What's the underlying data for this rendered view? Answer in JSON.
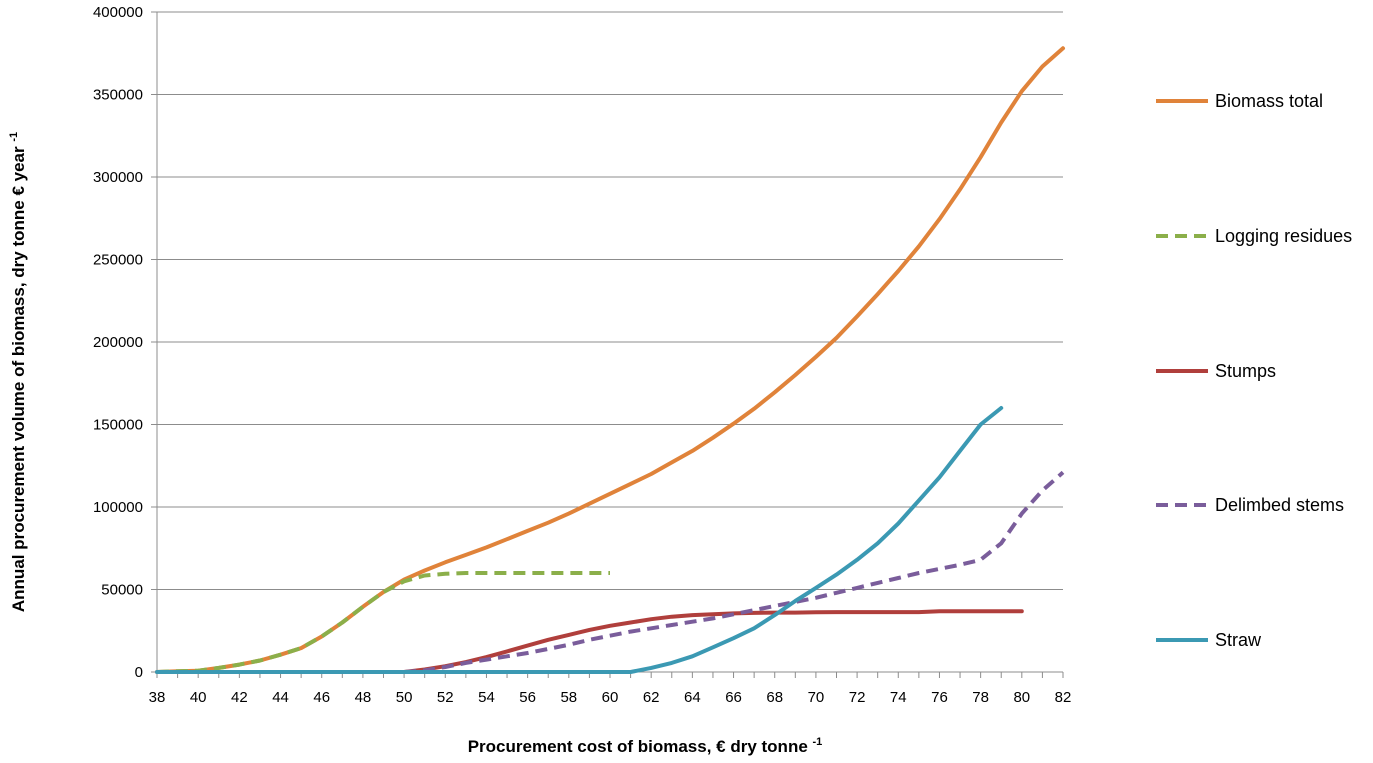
{
  "chart_data": {
    "type": "line",
    "xlabel": "Procurement cost of biomass, € dry tonne",
    "xlabel_sup": "-1",
    "ylabel": "Annual procurement volume of biomass, dry tonne € year",
    "ylabel_sup": "-1",
    "xlim": [
      38,
      82
    ],
    "ylim": [
      0,
      400000
    ],
    "x_ticks": [
      38,
      40,
      42,
      44,
      46,
      48,
      50,
      52,
      54,
      56,
      58,
      60,
      62,
      64,
      66,
      68,
      70,
      72,
      74,
      76,
      78,
      80,
      82
    ],
    "y_ticks": [
      0,
      50000,
      100000,
      150000,
      200000,
      250000,
      300000,
      350000,
      400000
    ],
    "grid": "horizontal",
    "legend_position": "right",
    "series": [
      {
        "name": "Biomass total",
        "color": "#E0833A",
        "dash": "solid",
        "points": [
          [
            38,
            0
          ],
          [
            39,
            500
          ],
          [
            40,
            800
          ],
          [
            41,
            2500
          ],
          [
            42,
            4500
          ],
          [
            43,
            7000
          ],
          [
            44,
            10500
          ],
          [
            45,
            14500
          ],
          [
            46,
            21500
          ],
          [
            47,
            30000
          ],
          [
            48,
            39500
          ],
          [
            49,
            48500
          ],
          [
            50,
            56000
          ],
          [
            51,
            61500
          ],
          [
            52,
            66500
          ],
          [
            53,
            71000
          ],
          [
            54,
            75500
          ],
          [
            55,
            80500
          ],
          [
            56,
            85500
          ],
          [
            57,
            90500
          ],
          [
            58,
            96000
          ],
          [
            59,
            102000
          ],
          [
            60,
            108000
          ],
          [
            61,
            114000
          ],
          [
            62,
            120000
          ],
          [
            63,
            127000
          ],
          [
            64,
            134000
          ],
          [
            65,
            142000
          ],
          [
            66,
            150500
          ],
          [
            67,
            159500
          ],
          [
            68,
            169500
          ],
          [
            69,
            180000
          ],
          [
            70,
            191000
          ],
          [
            71,
            202500
          ],
          [
            72,
            215500
          ],
          [
            73,
            229000
          ],
          [
            74,
            243000
          ],
          [
            75,
            258000
          ],
          [
            76,
            274500
          ],
          [
            77,
            292500
          ],
          [
            78,
            312000
          ],
          [
            79,
            333000
          ],
          [
            80,
            352000
          ],
          [
            81,
            367000
          ],
          [
            82,
            378000
          ]
        ]
      },
      {
        "name": "Logging residues",
        "color": "#8BAF4A",
        "dash": "dashed",
        "points": [
          [
            38,
            0
          ],
          [
            39,
            500
          ],
          [
            40,
            800
          ],
          [
            41,
            2500
          ],
          [
            42,
            4500
          ],
          [
            43,
            7000
          ],
          [
            44,
            10500
          ],
          [
            45,
            14500
          ],
          [
            46,
            21500
          ],
          [
            47,
            30000
          ],
          [
            48,
            39500
          ],
          [
            49,
            48500
          ],
          [
            50,
            55000
          ],
          [
            51,
            58500
          ],
          [
            52,
            59500
          ],
          [
            53,
            60000
          ],
          [
            54,
            60000
          ],
          [
            55,
            60000
          ],
          [
            56,
            60000
          ],
          [
            57,
            60000
          ],
          [
            58,
            60000
          ],
          [
            59,
            60000
          ],
          [
            60,
            60000
          ]
        ]
      },
      {
        "name": "Stumps",
        "color": "#B03F3C",
        "dash": "solid",
        "points": [
          [
            50,
            0
          ],
          [
            51,
            1500
          ],
          [
            52,
            3500
          ],
          [
            53,
            6000
          ],
          [
            54,
            9000
          ],
          [
            55,
            12500
          ],
          [
            56,
            16000
          ],
          [
            57,
            19500
          ],
          [
            58,
            22500
          ],
          [
            59,
            25500
          ],
          [
            60,
            28000
          ],
          [
            61,
            30000
          ],
          [
            62,
            32000
          ],
          [
            63,
            33500
          ],
          [
            64,
            34500
          ],
          [
            65,
            35000
          ],
          [
            66,
            35500
          ],
          [
            67,
            35800
          ],
          [
            68,
            36000
          ],
          [
            69,
            36000
          ],
          [
            70,
            36200
          ],
          [
            71,
            36300
          ],
          [
            72,
            36300
          ],
          [
            73,
            36300
          ],
          [
            74,
            36300
          ],
          [
            75,
            36300
          ],
          [
            76,
            36800
          ],
          [
            77,
            36800
          ],
          [
            78,
            36800
          ],
          [
            79,
            36800
          ],
          [
            80,
            36800
          ]
        ]
      },
      {
        "name": "Delimbed stems",
        "color": "#7A5D9B",
        "dash": "dashed",
        "points": [
          [
            50,
            0
          ],
          [
            51,
            1000
          ],
          [
            52,
            3000
          ],
          [
            53,
            5500
          ],
          [
            54,
            7500
          ],
          [
            55,
            9500
          ],
          [
            56,
            11500
          ],
          [
            57,
            14000
          ],
          [
            58,
            16500
          ],
          [
            59,
            19500
          ],
          [
            60,
            22000
          ],
          [
            61,
            24500
          ],
          [
            62,
            26500
          ],
          [
            63,
            28500
          ],
          [
            64,
            30500
          ],
          [
            65,
            32500
          ],
          [
            66,
            35000
          ],
          [
            67,
            37500
          ],
          [
            68,
            40000
          ],
          [
            69,
            42500
          ],
          [
            70,
            45000
          ],
          [
            71,
            48000
          ],
          [
            72,
            51000
          ],
          [
            73,
            54000
          ],
          [
            74,
            57000
          ],
          [
            75,
            60000
          ],
          [
            76,
            62500
          ],
          [
            77,
            65000
          ],
          [
            78,
            68000
          ],
          [
            79,
            78000
          ],
          [
            80,
            96000
          ],
          [
            81,
            110000
          ],
          [
            82,
            121000
          ]
        ]
      },
      {
        "name": "Straw",
        "color": "#3B99B3",
        "dash": "solid",
        "points": [
          [
            38,
            0
          ],
          [
            40,
            0
          ],
          [
            42,
            0
          ],
          [
            44,
            0
          ],
          [
            46,
            0
          ],
          [
            48,
            0
          ],
          [
            50,
            0
          ],
          [
            52,
            0
          ],
          [
            54,
            0
          ],
          [
            56,
            0
          ],
          [
            58,
            0
          ],
          [
            60,
            0
          ],
          [
            61,
            0
          ],
          [
            62,
            2500
          ],
          [
            63,
            5500
          ],
          [
            64,
            9500
          ],
          [
            65,
            15000
          ],
          [
            66,
            20500
          ],
          [
            67,
            26500
          ],
          [
            68,
            34500
          ],
          [
            69,
            43000
          ],
          [
            70,
            51000
          ],
          [
            71,
            59000
          ],
          [
            72,
            68000
          ],
          [
            73,
            78000
          ],
          [
            74,
            90000
          ],
          [
            75,
            104000
          ],
          [
            76,
            118000
          ],
          [
            77,
            134000
          ],
          [
            78,
            150000
          ],
          [
            79,
            160000
          ]
        ]
      }
    ]
  }
}
